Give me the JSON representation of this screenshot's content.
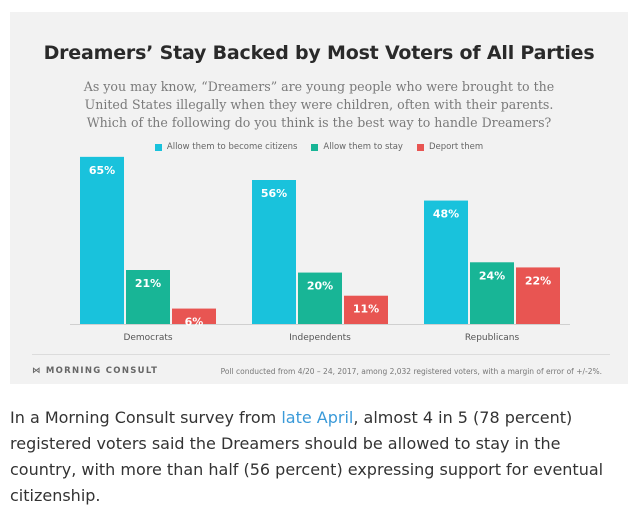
{
  "colors": {
    "citizens": "#19c2dc",
    "stay": "#18b596",
    "deport": "#e85552",
    "link": "#3a9ad9"
  },
  "chart_data": {
    "type": "bar",
    "title": "Dreamers’ Stay Backed by Most Voters of All Parties",
    "subtitle": "As you may know, “Dreamers” are young people who were brought to the United States illegally when they were children, often with their parents. Which of the following do you think is the best way to handle Dreamers?",
    "categories": [
      "Democrats",
      "Independents",
      "Republicans"
    ],
    "series": [
      {
        "name": "Allow them to become citizens",
        "values": [
          65,
          56,
          48
        ],
        "labels": [
          "65%",
          "56%",
          "48%"
        ]
      },
      {
        "name": "Allow them to stay",
        "values": [
          21,
          20,
          24
        ],
        "labels": [
          "21%",
          "20%",
          "24%"
        ]
      },
      {
        "name": "Deport them",
        "values": [
          6,
          11,
          22
        ],
        "labels": [
          "6%",
          "11%",
          "22%"
        ]
      }
    ],
    "xlabel": "",
    "ylabel": "",
    "ylim": [
      0,
      70
    ],
    "grid": false,
    "legend": "top-center"
  },
  "footer": {
    "logo_mark": "⋈",
    "logo_text": "MORNING CONSULT",
    "note": "Poll conducted from 4/20 – 24, 2017, among 2,032 registered voters, with a margin of error of +/-2%."
  },
  "caption": {
    "before_link": "In a Morning Consult survey from ",
    "link_text": "late April",
    "after_link": ", almost 4 in 5 (78 percent) registered voters said the Dreamers should be allowed to stay in the country, with more than half (56 percent) expressing support for eventual citizenship."
  }
}
